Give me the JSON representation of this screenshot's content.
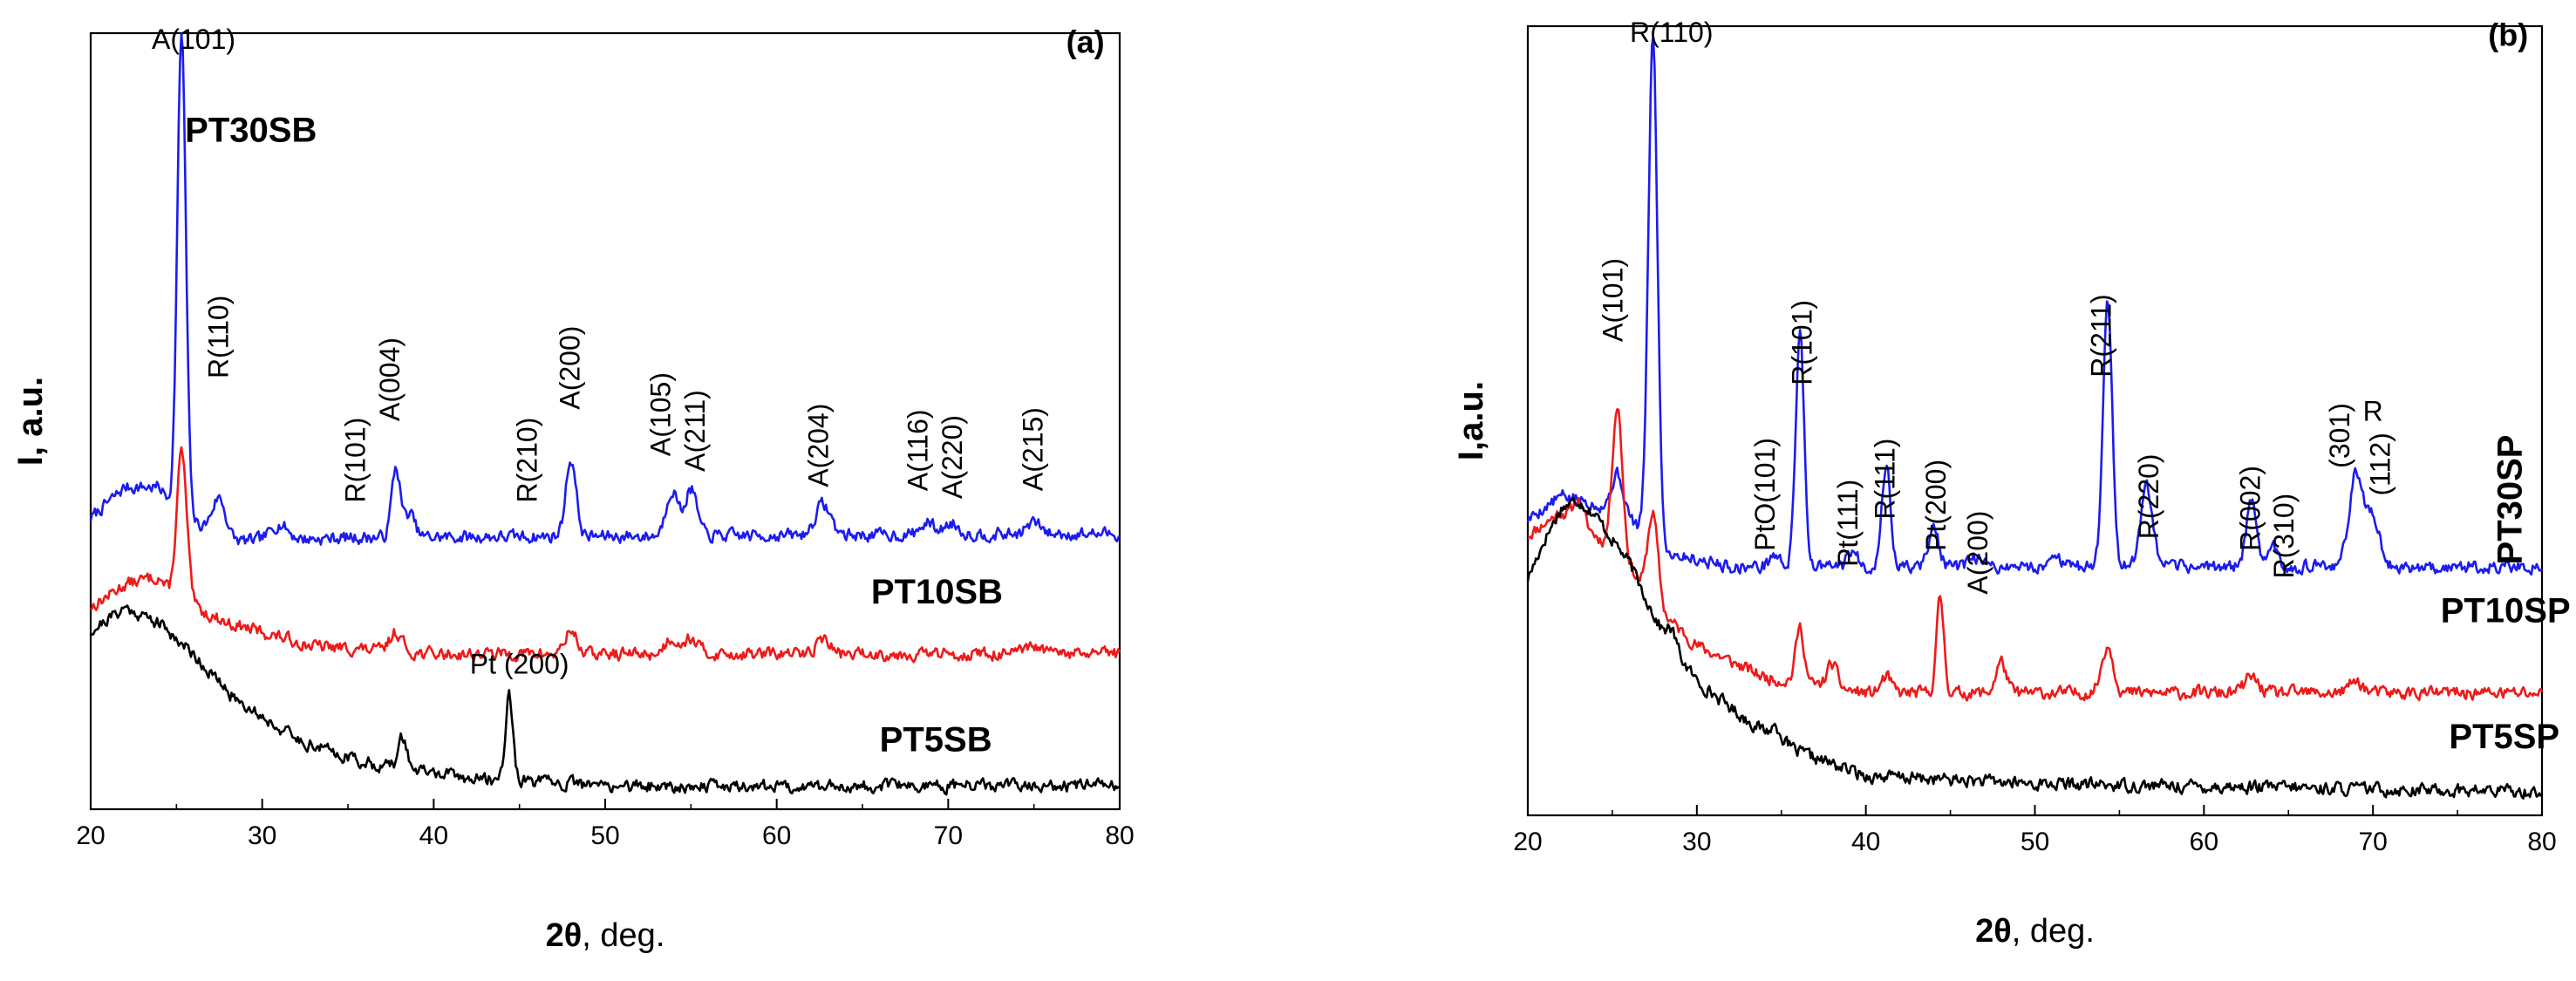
{
  "chart_data": [
    {
      "type": "line",
      "panel": "(a)",
      "title": "",
      "xlabel_symbol": "2θ",
      "xlabel_rest": ", deg.",
      "ylabel": "I, a.u.",
      "xlim": [
        20,
        80
      ],
      "xticks": [
        20,
        30,
        40,
        50,
        60,
        70,
        80
      ],
      "ylim": [
        0,
        1
      ],
      "yticks_shown": false,
      "grid": false,
      "series": [
        {
          "name": "PT30SB",
          "color": "#1c1cf0",
          "baseline": 0.355,
          "noise": 0.007,
          "seed": 7,
          "shape": [
            [
              20,
              0.02
            ],
            [
              22,
              0.06
            ],
            [
              24,
              0.06
            ],
            [
              25,
              0.03
            ],
            [
              26,
              0.015
            ],
            [
              28,
              -0.01
            ],
            [
              35,
              -0.005
            ],
            [
              80,
              0.0
            ]
          ],
          "peaks": [
            [
              25.3,
              0.62,
              0.25
            ],
            [
              27.5,
              0.05,
              0.4
            ],
            [
              31,
              0.02,
              0.5
            ],
            [
              37.8,
              0.09,
              0.25
            ],
            [
              38.6,
              0.03,
              0.3
            ],
            [
              48.0,
              0.1,
              0.3
            ],
            [
              53.9,
              0.06,
              0.35
            ],
            [
              55.0,
              0.06,
              0.35
            ],
            [
              62.7,
              0.04,
              0.45
            ],
            [
              68.8,
              0.015,
              0.4
            ],
            [
              70.2,
              0.015,
              0.4
            ],
            [
              75.0,
              0.015,
              0.4
            ]
          ],
          "label": "PT30SB",
          "label_x": 25.5,
          "label_y": 0.86
        },
        {
          "name": "PT10SB",
          "color": "#ef1a1a",
          "baseline": 0.2,
          "noise": 0.007,
          "seed": 13,
          "shape": [
            [
              20,
              0.06
            ],
            [
              22,
              0.09
            ],
            [
              24,
              0.1
            ],
            [
              25,
              0.06
            ],
            [
              26,
              0.06
            ],
            [
              28,
              0.04
            ],
            [
              33,
              0.01
            ],
            [
              40,
              0.0
            ],
            [
              80,
              0.0
            ]
          ],
          "peaks": [
            [
              25.3,
              0.2,
              0.3
            ],
            [
              37.8,
              0.025,
              0.35
            ],
            [
              48.0,
              0.03,
              0.35
            ],
            [
              53.9,
              0.02,
              0.4
            ],
            [
              55.0,
              0.02,
              0.4
            ],
            [
              62.7,
              0.02,
              0.4
            ],
            [
              75.0,
              0.008,
              0.5
            ]
          ],
          "label": "PT10SB",
          "label_x": 65.5,
          "label_y": 0.265
        },
        {
          "name": "PT5SB",
          "color": "#000000",
          "baseline": 0.03,
          "noise": 0.007,
          "seed": 21,
          "shape": [
            [
              20,
              0.2
            ],
            [
              22,
              0.23
            ],
            [
              24,
              0.21
            ],
            [
              26,
              0.17
            ],
            [
              28,
              0.12
            ],
            [
              32,
              0.06
            ],
            [
              36,
              0.03
            ],
            [
              42,
              0.01
            ],
            [
              50,
              0.0
            ],
            [
              80,
              0.0
            ]
          ],
          "peaks": [
            [
              38.2,
              0.04,
              0.25
            ],
            [
              44.4,
              0.11,
              0.22
            ]
          ],
          "label": "PT5SB",
          "label_x": 66.0,
          "label_y": 0.075
        }
      ],
      "annotations": [
        {
          "text": "(a)",
          "x": 78.0,
          "y": 0.975,
          "rotate": false,
          "bold": true
        },
        {
          "text": "A(101)",
          "x": 26.0,
          "y": 0.98,
          "rotate": false
        },
        {
          "text": "R(110)",
          "x": 28.0,
          "y": 0.555,
          "rotate": true
        },
        {
          "text": "R(101)",
          "x": 36.0,
          "y": 0.395,
          "rotate": true
        },
        {
          "text": "A(004)",
          "x": 38.0,
          "y": 0.5,
          "rotate": true
        },
        {
          "text": "R(210)",
          "x": 46.0,
          "y": 0.395,
          "rotate": true
        },
        {
          "text": "A(200)",
          "x": 48.5,
          "y": 0.515,
          "rotate": true
        },
        {
          "text": "A(105)",
          "x": 53.8,
          "y": 0.455,
          "rotate": true
        },
        {
          "text": "A(211)",
          "x": 55.8,
          "y": 0.435,
          "rotate": true
        },
        {
          "text": "A(204)",
          "x": 63.0,
          "y": 0.415,
          "rotate": true
        },
        {
          "text": "A(116)",
          "x": 68.8,
          "y": 0.41,
          "rotate": true
        },
        {
          "text": "A(220)",
          "x": 70.8,
          "y": 0.4,
          "rotate": true
        },
        {
          "text": "A(215)",
          "x": 75.5,
          "y": 0.41,
          "rotate": true
        },
        {
          "text": "Pt (200)",
          "x": 45.0,
          "y": 0.175,
          "rotate": false
        }
      ]
    },
    {
      "type": "line",
      "panel": "(b)",
      "title": "",
      "xlabel_symbol": "2θ",
      "xlabel_rest": ", deg.",
      "ylabel": "I,a.u.",
      "xlim": [
        20,
        80
      ],
      "xticks": [
        20,
        30,
        40,
        50,
        60,
        70,
        80
      ],
      "ylim": [
        0,
        1
      ],
      "yticks_shown": false,
      "grid": false,
      "series": [
        {
          "name": "PT30SP",
          "color": "#1c1cf0",
          "baseline": 0.315,
          "noise": 0.007,
          "seed": 5,
          "shape": [
            [
              20,
              0.06
            ],
            [
              22,
              0.09
            ],
            [
              24,
              0.08
            ],
            [
              26,
              0.06
            ],
            [
              28,
              0.02
            ],
            [
              32,
              0.0
            ],
            [
              80,
              0.0
            ]
          ],
          "peaks": [
            [
              25.3,
              0.05,
              0.35
            ],
            [
              27.4,
              0.64,
              0.27
            ],
            [
              34.6,
              0.015,
              0.3
            ],
            [
              36.1,
              0.3,
              0.25
            ],
            [
              39.2,
              0.02,
              0.3
            ],
            [
              41.2,
              0.13,
              0.25
            ],
            [
              44.0,
              0.05,
              0.3
            ],
            [
              46.5,
              0.012,
              0.3
            ],
            [
              51.2,
              0.02,
              0.25
            ],
            [
              54.3,
              0.34,
              0.27
            ],
            [
              56.6,
              0.1,
              0.35
            ],
            [
              62.8,
              0.08,
              0.3
            ],
            [
              64.0,
              0.03,
              0.3
            ],
            [
              69.0,
              0.12,
              0.4
            ],
            [
              70.0,
              0.06,
              0.4
            ]
          ],
          "label": "PT30SP",
          "label_x": 78.8,
          "label_y": 0.4,
          "label_rotate": true
        },
        {
          "name": "PT10SP",
          "color": "#ef1a1a",
          "baseline": 0.155,
          "noise": 0.007,
          "seed": 11,
          "shape": [
            [
              20,
              0.2
            ],
            [
              22,
              0.23
            ],
            [
              24,
              0.2
            ],
            [
              26,
              0.16
            ],
            [
              28,
              0.1
            ],
            [
              30,
              0.06
            ],
            [
              34,
              0.02
            ],
            [
              40,
              0.0
            ],
            [
              80,
              0.0
            ]
          ],
          "peaks": [
            [
              23.0,
              0.03,
              0.3
            ],
            [
              25.3,
              0.19,
              0.3
            ],
            [
              27.4,
              0.11,
              0.3
            ],
            [
              36.1,
              0.07,
              0.25
            ],
            [
              38.0,
              0.03,
              0.3
            ],
            [
              41.2,
              0.02,
              0.3
            ],
            [
              44.4,
              0.12,
              0.22
            ],
            [
              48.0,
              0.04,
              0.3
            ],
            [
              54.3,
              0.06,
              0.35
            ],
            [
              62.8,
              0.02,
              0.4
            ],
            [
              69.0,
              0.015,
              0.4
            ]
          ],
          "label": "PT10SP",
          "label_x": 74.0,
          "label_y": 0.245
        },
        {
          "name": "PT5SP",
          "color": "#000000",
          "baseline": 0.03,
          "noise": 0.007,
          "seed": 17,
          "shape": [
            [
              20,
              0.27
            ],
            [
              21,
              0.32
            ],
            [
              22,
              0.36
            ],
            [
              23,
              0.37
            ],
            [
              24,
              0.35
            ],
            [
              26,
              0.29
            ],
            [
              28,
              0.2
            ],
            [
              30,
              0.14
            ],
            [
              33,
              0.09
            ],
            [
              36,
              0.05
            ],
            [
              40,
              0.02
            ],
            [
              50,
              0.01
            ],
            [
              80,
              0.0
            ]
          ],
          "peaks": [
            [
              28.5,
              0.02,
              0.3
            ],
            [
              34.7,
              0.015,
              0.3
            ]
          ],
          "label": "PT5SP",
          "label_x": 74.5,
          "label_y": 0.085
        }
      ],
      "annotations": [
        {
          "text": "(b)",
          "x": 78.0,
          "y": 0.975,
          "rotate": false,
          "bold": true
        },
        {
          "text": "R(110)",
          "x": 28.5,
          "y": 0.98,
          "rotate": false
        },
        {
          "text": "A(101)",
          "x": 25.6,
          "y": 0.6,
          "rotate": true
        },
        {
          "text": "R(101)",
          "x": 36.8,
          "y": 0.545,
          "rotate": true
        },
        {
          "text": "PtO(101)",
          "x": 34.6,
          "y": 0.335,
          "rotate": true
        },
        {
          "text": "Pt(111)",
          "x": 39.5,
          "y": 0.315,
          "rotate": true
        },
        {
          "text": "R(111)",
          "x": 41.7,
          "y": 0.375,
          "rotate": true
        },
        {
          "text": "Pt(200)",
          "x": 44.7,
          "y": 0.335,
          "rotate": true
        },
        {
          "text": "A(200)",
          "x": 47.2,
          "y": 0.28,
          "rotate": true
        },
        {
          "text": "R(211)",
          "x": 54.5,
          "y": 0.555,
          "rotate": true
        },
        {
          "text": "R(220)",
          "x": 57.3,
          "y": 0.35,
          "rotate": true
        },
        {
          "text": "R(002)",
          "x": 63.3,
          "y": 0.335,
          "rotate": true
        },
        {
          "text": "R(310)",
          "x": 65.3,
          "y": 0.3,
          "rotate": true
        },
        {
          "text": "(301)",
          "x": 68.6,
          "y": 0.44,
          "rotate": true
        },
        {
          "text": "R",
          "x": 70.0,
          "y": 0.5,
          "rotate": false
        },
        {
          "text": "(112)",
          "x": 71.0,
          "y": 0.405,
          "rotate": true
        }
      ]
    }
  ]
}
